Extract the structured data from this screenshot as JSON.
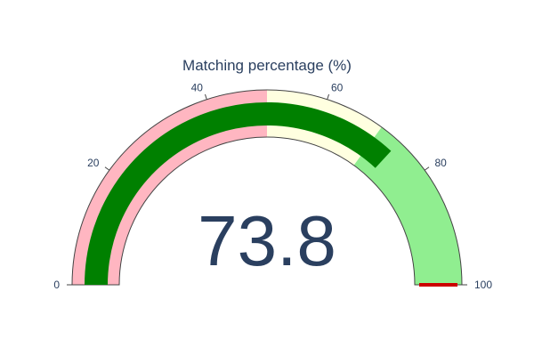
{
  "chart_data": {
    "type": "gauge",
    "title": "Matching percentage (%)",
    "value": 73.8,
    "value_label": "73.8",
    "range": [
      0,
      100
    ],
    "tick_values": [
      0,
      20,
      40,
      60,
      80,
      100
    ],
    "tick_labels": [
      "0",
      "20",
      "40",
      "60",
      "80",
      "100"
    ],
    "steps": [
      {
        "range": [
          0,
          50
        ],
        "color": "#ffb6c1"
      },
      {
        "range": [
          50,
          70
        ],
        "color": "#ffffe0"
      },
      {
        "range": [
          70,
          100
        ],
        "color": "#90ee90"
      }
    ],
    "bar_color": "#008000",
    "threshold": {
      "value": 100,
      "color": "#cc0000"
    }
  }
}
